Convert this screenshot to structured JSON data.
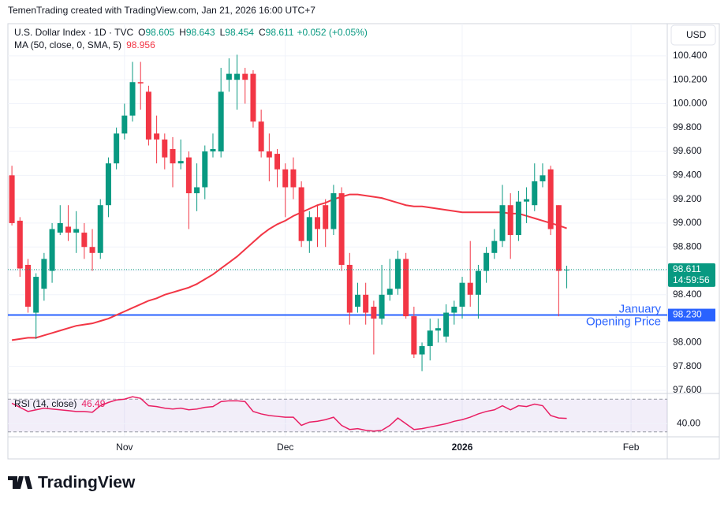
{
  "header": {
    "attribution": "TemenTrading created with TradingView.com, Jan 21, 2026 16:00 UTC+7"
  },
  "chart_data": {
    "type": "candlestick",
    "symbol": "U.S. Dollar Index · 1D · TVC",
    "ohlc_labels": [
      "O",
      "H",
      "L",
      "C"
    ],
    "change": "+0.052 (+0.05%)",
    "currency": "USD",
    "countdown": "14:59:56",
    "up_color": "#089981",
    "down_color": "#f23645",
    "grid": true,
    "open": [
      99.4,
      99.02,
      98.65,
      98.25,
      98.45,
      98.6,
      98.92,
      98.97,
      98.92,
      98.92,
      98.8,
      98.75,
      99.15,
      99.5,
      99.75,
      99.9,
      100.18,
      100.1,
      99.75,
      99.7,
      99.62,
      99.5,
      99.55,
      99.25,
      99.3,
      99.6,
      99.6,
      100.2,
      100.2,
      100.25,
      100.25,
      99.85,
      99.6,
      99.58,
      99.45,
      99.45,
      99.3,
      98.85,
      99.05,
      99.15,
      98.95,
      99.25,
      98.65,
      98.3,
      98.4,
      98.3,
      98.2,
      98.4,
      98.45,
      98.7,
      98.22,
      97.9,
      97.97,
      98.1,
      98.05,
      98.25,
      98.3,
      98.5,
      98.4,
      98.6,
      98.75,
      98.85,
      99.15,
      98.9,
      99.18,
      99.15,
      99.35,
      99.45,
      99.15,
      98.605
    ],
    "high": [
      99.48,
      99.05,
      98.7,
      98.58,
      98.75,
      99.0,
      99.15,
      99.15,
      99.1,
      99.0,
      98.95,
      99.2,
      99.55,
      99.8,
      100.0,
      100.35,
      100.35,
      100.15,
      99.9,
      99.75,
      99.72,
      99.7,
      99.6,
      99.5,
      99.65,
      99.75,
      100.3,
      100.38,
      100.41,
      100.3,
      100.28,
      99.95,
      99.75,
      99.62,
      99.5,
      99.55,
      99.35,
      99.1,
      99.15,
      99.2,
      99.32,
      99.3,
      98.75,
      98.5,
      98.5,
      98.35,
      98.65,
      98.7,
      98.77,
      98.75,
      98.3,
      98.0,
      98.2,
      98.2,
      98.32,
      98.35,
      98.55,
      98.85,
      98.65,
      98.8,
      98.95,
      99.32,
      99.25,
      99.27,
      99.3,
      99.5,
      99.5,
      99.48,
      99.15,
      98.643
    ],
    "low": [
      98.98,
      98.55,
      98.25,
      98.03,
      98.35,
      98.5,
      98.9,
      98.85,
      98.75,
      98.7,
      98.6,
      98.7,
      99.05,
      99.45,
      99.7,
      99.85,
      99.95,
      99.65,
      99.5,
      99.45,
      99.3,
      99.45,
      98.95,
      99.1,
      99.2,
      99.55,
      99.55,
      100.1,
      99.95,
      100.0,
      99.8,
      99.55,
      99.35,
      99.3,
      99.05,
      99.2,
      98.8,
      98.75,
      98.8,
      98.8,
      98.9,
      98.6,
      98.15,
      98.25,
      98.15,
      97.9,
      98.15,
      98.35,
      98.4,
      98.2,
      97.87,
      97.76,
      97.85,
      98.0,
      98.0,
      98.15,
      98.2,
      98.3,
      98.2,
      98.5,
      98.7,
      98.8,
      98.7,
      98.85,
      99.0,
      99.1,
      99.3,
      98.9,
      98.22,
      98.454
    ],
    "close": [
      99.0,
      98.62,
      98.3,
      98.55,
      98.7,
      98.95,
      99.0,
      98.92,
      98.95,
      98.8,
      98.75,
      99.15,
      99.5,
      99.75,
      99.9,
      100.18,
      100.17,
      99.7,
      99.7,
      99.55,
      99.5,
      99.52,
      99.25,
      99.3,
      99.6,
      99.62,
      100.1,
      100.25,
      100.25,
      100.2,
      99.85,
      99.6,
      99.55,
      99.45,
      99.3,
      99.3,
      98.85,
      99.05,
      98.95,
      98.95,
      99.25,
      98.65,
      98.25,
      98.4,
      98.25,
      98.2,
      98.4,
      98.45,
      98.7,
      98.22,
      97.9,
      97.97,
      98.1,
      98.12,
      98.25,
      98.3,
      98.5,
      98.4,
      98.6,
      98.75,
      98.85,
      99.15,
      98.9,
      99.18,
      99.2,
      99.35,
      99.4,
      98.95,
      98.6,
      98.611
    ],
    "xlim": [
      -0.5,
      81.5
    ],
    "xticks": [
      {
        "value": 14,
        "label": "Nov"
      },
      {
        "value": 34,
        "label": "Dec"
      },
      {
        "value": 56,
        "label": "2026"
      },
      {
        "value": 77,
        "label": "Feb"
      }
    ],
    "ylim": [
      97.58,
      100.67
    ],
    "yticks": [
      {
        "value": 97.6,
        "label": "97.600"
      },
      {
        "value": 97.8,
        "label": "97.800"
      },
      {
        "value": 98.0,
        "label": "98.000"
      },
      {
        "value": 98.2,
        "label": "98.200"
      },
      {
        "value": 98.4,
        "label": "98.400"
      },
      {
        "value": 98.6,
        "label": "98.600"
      },
      {
        "value": 98.8,
        "label": "98.800"
      },
      {
        "value": 99.0,
        "label": "99.000"
      },
      {
        "value": 99.2,
        "label": "99.200"
      },
      {
        "value": 99.4,
        "label": "99.400"
      },
      {
        "value": 99.6,
        "label": "99.600"
      },
      {
        "value": 99.8,
        "label": "99.800"
      },
      {
        "value": 100.0,
        "label": "100.000"
      },
      {
        "value": 100.2,
        "label": "100.200"
      },
      {
        "value": 100.4,
        "label": "100.400"
      }
    ],
    "overlays": [
      {
        "name": "MA (50, close, 0, SMA, 5)",
        "color": "#f23645",
        "values": [
          98.02,
          98.03,
          98.04,
          98.04,
          98.06,
          98.08,
          98.1,
          98.12,
          98.14,
          98.15,
          98.16,
          98.18,
          98.2,
          98.23,
          98.26,
          98.29,
          98.32,
          98.35,
          98.37,
          98.4,
          98.42,
          98.44,
          98.46,
          98.49,
          98.53,
          98.57,
          98.62,
          98.67,
          98.72,
          98.78,
          98.84,
          98.9,
          98.95,
          98.99,
          99.02,
          99.06,
          99.09,
          99.12,
          99.15,
          99.17,
          99.2,
          99.22,
          99.24,
          99.24,
          99.23,
          99.22,
          99.21,
          99.19,
          99.17,
          99.15,
          99.14,
          99.14,
          99.13,
          99.12,
          99.11,
          99.1,
          99.09,
          99.09,
          99.09,
          99.09,
          99.09,
          99.09,
          99.08,
          99.08,
          99.06,
          99.04,
          99.02,
          99.0,
          98.98,
          98.956
        ]
      }
    ],
    "hline": {
      "value": 98.23,
      "label": "98.230",
      "text": [
        "January",
        "Opening Price"
      ],
      "color": "#2962ff"
    },
    "rsi": {
      "name": "RSI (14, close)",
      "color": "#e91e63",
      "ylim": [
        25,
        76
      ],
      "band": [
        30,
        70
      ],
      "yticks": [
        {
          "value": 40,
          "label": "40.00"
        }
      ],
      "values": [
        65,
        60,
        55,
        57,
        59,
        58,
        57,
        56,
        55,
        55,
        54,
        62,
        66,
        69,
        70,
        73,
        71,
        62,
        61,
        59,
        58,
        59,
        57,
        58,
        60,
        61,
        67,
        68,
        68,
        67,
        55,
        52,
        50,
        49,
        48,
        48,
        38,
        42,
        43,
        45,
        48,
        38,
        33,
        34,
        32,
        31,
        32,
        38,
        47,
        40,
        33,
        34,
        36,
        38,
        40,
        43,
        45,
        48,
        52,
        55,
        57,
        62,
        57,
        62,
        61,
        64,
        62,
        50,
        47,
        46.49
      ]
    }
  },
  "footer": {
    "logo": "TradingView"
  }
}
